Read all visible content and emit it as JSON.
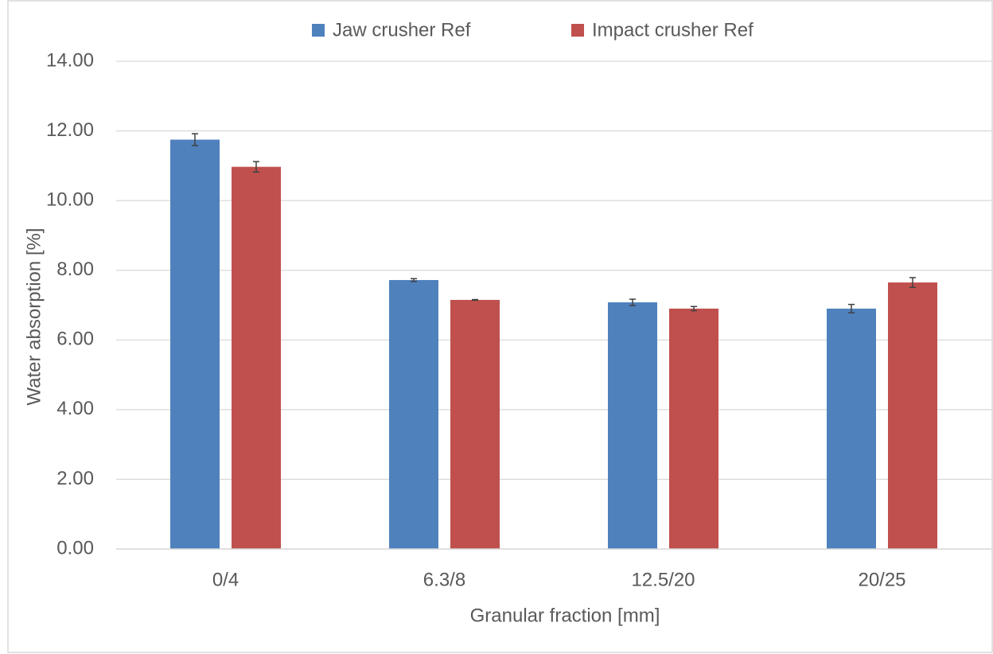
{
  "chart_data": {
    "type": "bar",
    "x_label": "Granular fraction [mm]",
    "y_label": "Water absorption [%]",
    "categories": [
      "0/4",
      "6.3/8",
      "12.5/20",
      "20/25"
    ],
    "series": [
      {
        "name": "Jaw crusher Ref",
        "color": "#4f81bd",
        "values": [
          11.75,
          7.72,
          7.08,
          6.9
        ],
        "errors": [
          0.17,
          0.04,
          0.09,
          0.12
        ]
      },
      {
        "name": "Impact crusher Ref",
        "color": "#c0504d",
        "values": [
          10.97,
          7.15,
          6.9,
          7.65
        ],
        "errors": [
          0.15,
          0.01,
          0.06,
          0.14
        ]
      }
    ],
    "ylim": [
      0,
      14
    ],
    "yticks": [
      {
        "value": 0,
        "label": "0.00"
      },
      {
        "value": 2,
        "label": "2.00"
      },
      {
        "value": 4,
        "label": "4.00"
      },
      {
        "value": 6,
        "label": "6.00"
      },
      {
        "value": 8,
        "label": "8.00"
      },
      {
        "value": 10,
        "label": "10.00"
      },
      {
        "value": 12,
        "label": "12.00"
      },
      {
        "value": 14,
        "label": "14.00"
      }
    ],
    "grid": true,
    "legend": "top"
  }
}
